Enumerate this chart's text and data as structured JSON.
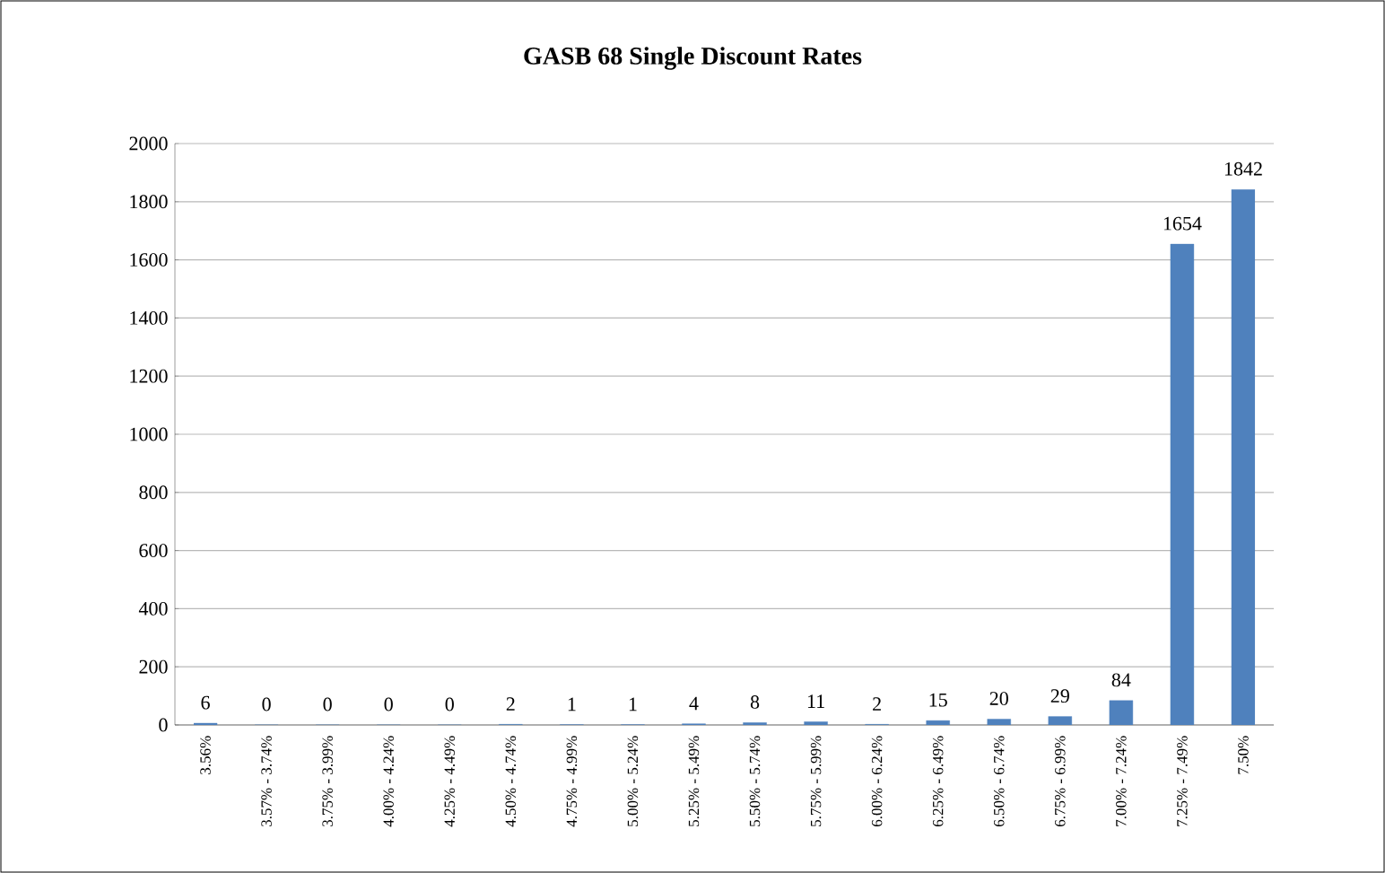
{
  "chart_data": {
    "type": "bar",
    "title": "GASB 68 Single Discount Rates",
    "categories": [
      "3.56%",
      "3.57% - 3.74%",
      "3.75% - 3.99%",
      "4.00% - 4.24%",
      "4.25% - 4.49%",
      "4.50% - 4.74%",
      "4.75% - 4.99%",
      "5.00% - 5.24%",
      "5.25% - 5.49%",
      "5.50% - 5.74%",
      "5.75% - 5.99%",
      "6.00% - 6.24%",
      "6.25% - 6.49%",
      "6.50% - 6.74%",
      "6.75% - 6.99%",
      "7.00% - 7.24%",
      "7.25% - 7.49%",
      "7.50%"
    ],
    "values": [
      6,
      0,
      0,
      0,
      0,
      2,
      1,
      1,
      4,
      8,
      11,
      2,
      15,
      20,
      29,
      84,
      1654,
      1842
    ],
    "color": "#4f81bd",
    "ylim": [
      0,
      2000
    ],
    "yticks": [
      0,
      200,
      400,
      600,
      800,
      1000,
      1200,
      1400,
      1600,
      1800,
      2000
    ],
    "grid": "y",
    "data_labels": true
  }
}
